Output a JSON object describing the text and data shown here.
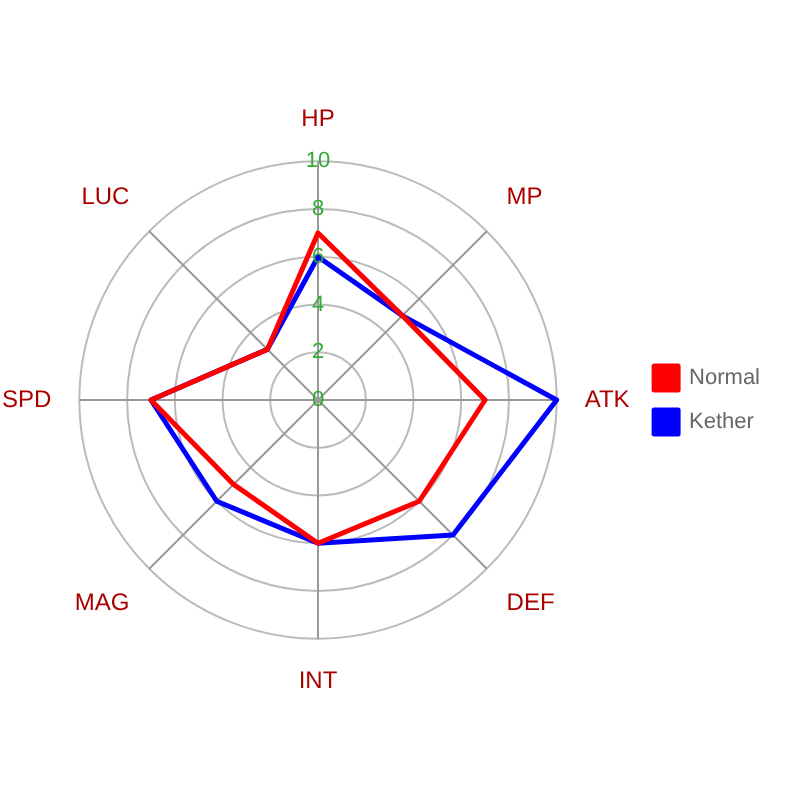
{
  "chart_data": {
    "type": "radar",
    "categories": [
      "HP",
      "MP",
      "ATK",
      "DEF",
      "INT",
      "MAG",
      "SPD",
      "LUC"
    ],
    "series": [
      {
        "name": "Normal",
        "color": "#ff0000",
        "values": [
          7,
          5,
          7,
          6,
          6,
          5,
          7,
          3
        ]
      },
      {
        "name": "Kether",
        "color": "#0000ff",
        "values": [
          6,
          5,
          10,
          8,
          6,
          6,
          7,
          3
        ]
      }
    ],
    "ylim": [
      0,
      10
    ],
    "yticks": [
      0,
      2,
      4,
      6,
      8,
      10
    ],
    "grid": true,
    "legend": "right",
    "marker": "none",
    "line_style": "solid"
  }
}
